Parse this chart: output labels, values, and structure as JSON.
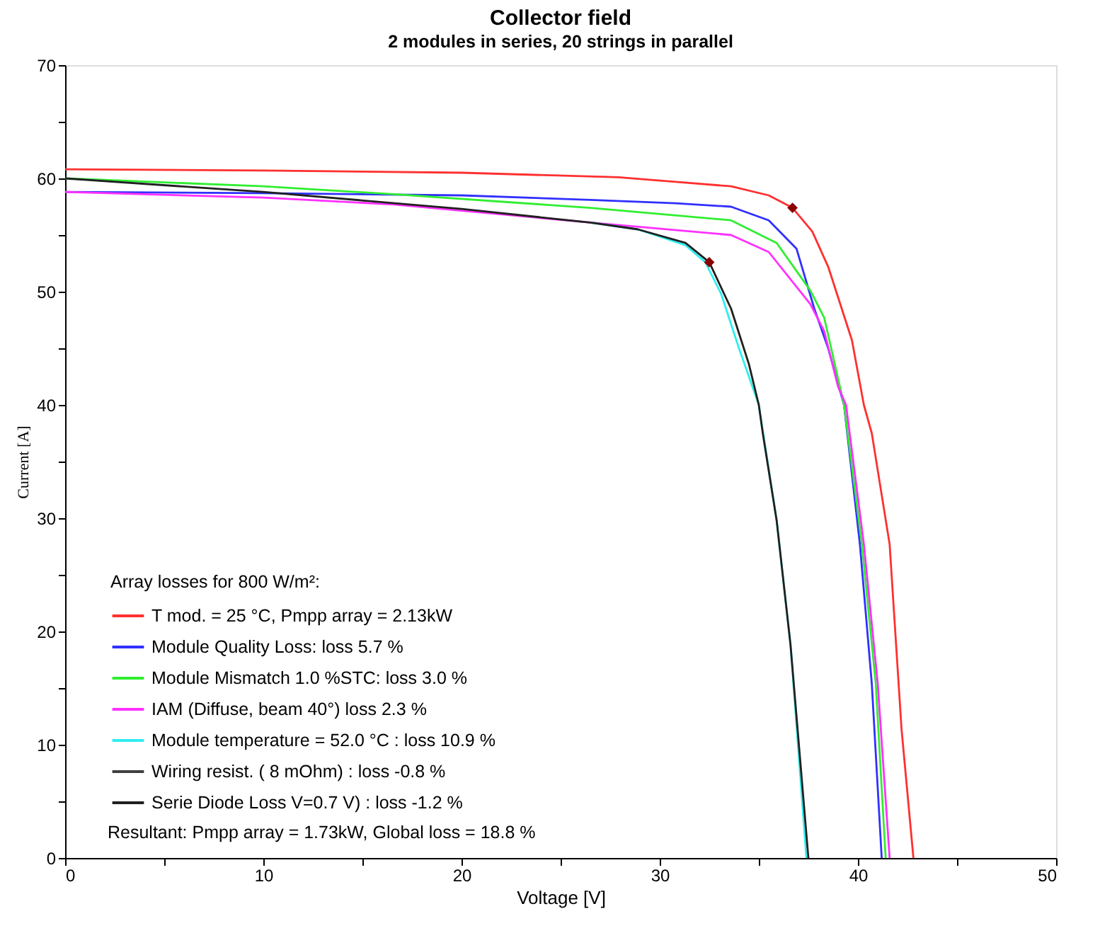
{
  "chart_data": {
    "type": "line",
    "title": "Collector field",
    "subtitle": "2 modules in series, 20 strings in parallel",
    "xlabel": "Voltage [V]",
    "ylabel": "Current [A]",
    "legend_title": "Array losses for  800 W/m²:",
    "legend": "bottom left",
    "grid": false,
    "marker": "none",
    "line_style": "solid",
    "xlim": [
      0,
      50
    ],
    "ylim": [
      0,
      70
    ],
    "xticks": [
      0,
      {
        "value": 5,
        "label": null
      },
      10,
      {
        "value": 15,
        "label": null
      },
      20,
      {
        "value": 25,
        "label": null
      },
      30,
      {
        "value": 35,
        "label": null
      },
      40,
      {
        "value": 45,
        "label": null
      },
      50
    ],
    "yticks": [
      0,
      {
        "value": 5,
        "label": null
      },
      10,
      {
        "value": 15,
        "label": null
      },
      20,
      {
        "value": 25,
        "label": null
      },
      30,
      {
        "value": 35,
        "label": null
      },
      40,
      {
        "value": 45,
        "label": null
      },
      50,
      {
        "value": 55,
        "label": null
      },
      60,
      {
        "value": 65,
        "label": null
      },
      70
    ],
    "annotations": [
      "Resultant: Pmpp array =   1.73kW, Global loss = 18.8 %"
    ],
    "series": [
      {
        "name": "T mod. = 25 °C,   Pmpp array =   2.13kW",
        "color": "#ff3030",
        "x": [
          0,
          10,
          20,
          27.9,
          30.8,
          33.6,
          35.5,
          36.7,
          37.7,
          38.5,
          39.7,
          40.3,
          40.7,
          41.6,
          42.2,
          42.8
        ],
        "values": [
          60.8,
          60.7,
          60.5,
          60.1,
          59.7,
          59.3,
          58.5,
          57.4,
          55.3,
          52.2,
          45.7,
          40.0,
          37.5,
          27.7,
          11.4,
          0
        ]
      },
      {
        "name": "Module Quality Loss:                 loss 5.7 %",
        "color": "#3030ff",
        "x": [
          0,
          10,
          20,
          26.5,
          30.8,
          33.6,
          35.5,
          36.9,
          37.8,
          38.5,
          39.3,
          40.1,
          40.7,
          41.2
        ],
        "values": [
          58.8,
          58.7,
          58.5,
          58.1,
          57.8,
          57.5,
          56.3,
          53.8,
          48.5,
          45.0,
          40.0,
          27.7,
          15.4,
          0
        ]
      },
      {
        "name": "Module Mismatch 1.0 %STC:    loss 3.0 %",
        "color": "#30ee30",
        "x": [
          0,
          10,
          16.6,
          26.5,
          33.6,
          35.9,
          37.6,
          38.3,
          39.3,
          40.2,
          40.9,
          41.4
        ],
        "values": [
          60.0,
          59.3,
          58.6,
          57.4,
          56.3,
          54.3,
          50.1,
          47.7,
          40.0,
          27.7,
          15.4,
          0
        ]
      },
      {
        "name": "IAM (Diffuse, beam 40°)           loss 2.3 %",
        "color": "#ff30ff",
        "x": [
          0,
          10,
          16.6,
          26.5,
          33.6,
          35.5,
          37.6,
          38.3,
          39.0,
          39.4,
          40.3,
          41.0,
          41.6
        ],
        "values": [
          58.8,
          58.3,
          57.7,
          56.1,
          55.0,
          53.5,
          48.9,
          46.5,
          41.6,
          40.0,
          27.7,
          15.4,
          0
        ]
      },
      {
        "name": "Module temperature = 52.0 °C : loss 10.9 %",
        "color": "#30eeee",
        "x": [
          26.5,
          28.9,
          31.3,
          32.3,
          33.1,
          34.0,
          35.0,
          35.9,
          36.6,
          37.4
        ],
        "values": [
          56.1,
          55.5,
          54.1,
          52.6,
          49.8,
          45.0,
          40.0,
          29.8,
          18.8,
          0
        ]
      },
      {
        "name": "Wiring resist.  (   8 mOhm) :      loss -0.8 %",
        "color": "#404040"
      },
      {
        "name": "Serie Diode Loss V=0.7 V) :      loss -1.2 %",
        "color": "#202020",
        "x": [
          0,
          10,
          20,
          26.5,
          28.9,
          31.3,
          32.5,
          33.6,
          34.5,
          35.0,
          35.2,
          35.9,
          36.6,
          37.5
        ],
        "values": [
          60.0,
          58.8,
          57.3,
          56.1,
          55.5,
          54.3,
          52.6,
          48.5,
          43.6,
          40.0,
          37.5,
          29.8,
          18.8,
          0
        ]
      },
      {
        "type": "scatter",
        "marker": "diamond",
        "color": "#8b0000",
        "x": [
          36.7,
          32.5
        ],
        "values": [
          57.4,
          52.6
        ]
      }
    ]
  }
}
